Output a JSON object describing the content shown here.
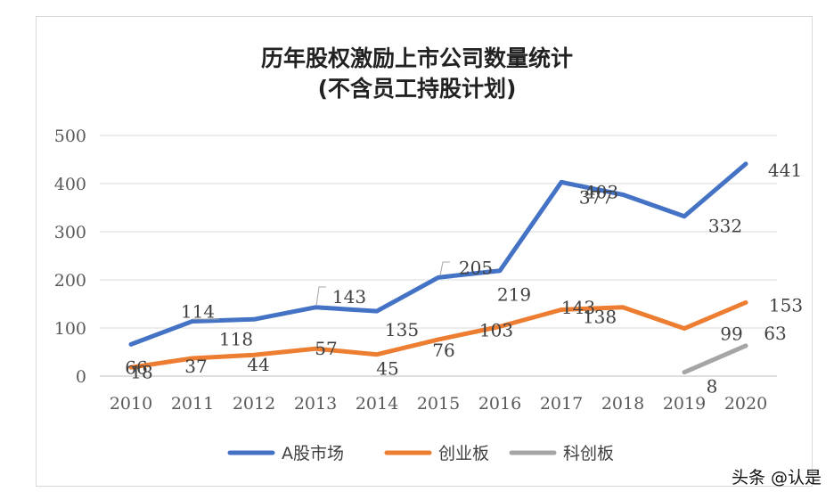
{
  "watermark": "头条 @认是",
  "chart_data": {
    "type": "line",
    "title": "历年股权激励上市公司数量统计",
    "subtitle": "(不含员工持股计划)",
    "categories": [
      "2010",
      "2011",
      "2012",
      "2013",
      "2014",
      "2015",
      "2016",
      "2017",
      "2018",
      "2019",
      "2020"
    ],
    "ylim": [
      0,
      500
    ],
    "yticks": [
      0,
      100,
      200,
      300,
      400,
      500
    ],
    "grid": true,
    "legend_position": "bottom",
    "series": [
      {
        "name": "A股市场",
        "color": "#4472c4",
        "values": [
          66,
          114,
          118,
          143,
          135,
          205,
          219,
          403,
          377,
          332,
          441
        ]
      },
      {
        "name": "创业板",
        "color": "#ed7d31",
        "values": [
          18,
          37,
          44,
          57,
          45,
          76,
          103,
          138,
          143,
          99,
          153
        ]
      },
      {
        "name": "科创板",
        "color": "#a5a5a5",
        "values": [
          null,
          null,
          null,
          null,
          null,
          null,
          null,
          null,
          null,
          8,
          63
        ]
      }
    ]
  }
}
